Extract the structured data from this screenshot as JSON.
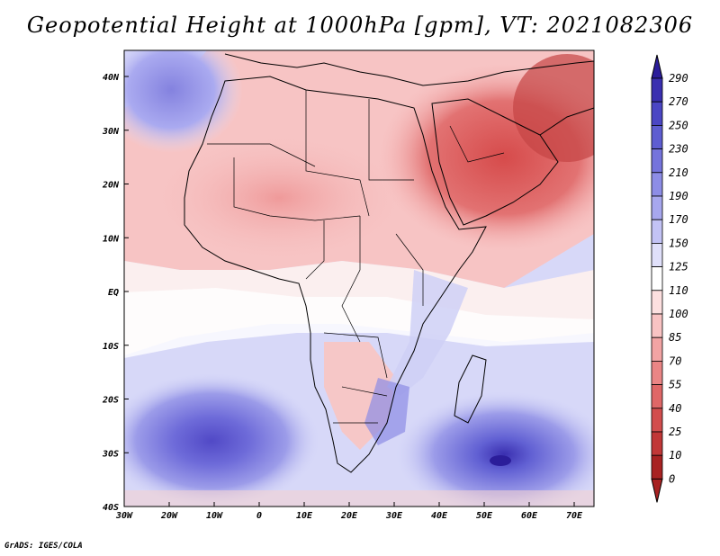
{
  "title": "Geopotential Height at 1000hPa [gpm], VT: 2021082306",
  "credit": "GrADS: IGES/COLA",
  "lat_ticks": [
    "40N",
    "30N",
    "20N",
    "10N",
    "EQ",
    "10S",
    "20S",
    "30S",
    "40S"
  ],
  "lon_ticks": [
    "30W",
    "20W",
    "10W",
    "0",
    "10E",
    "20E",
    "30E",
    "40E",
    "50E",
    "60E",
    "70E"
  ],
  "colorbar": {
    "labels": [
      "290",
      "270",
      "250",
      "230",
      "210",
      "190",
      "170",
      "150",
      "125",
      "110",
      "100",
      "85",
      "70",
      "55",
      "40",
      "25",
      "10",
      "0"
    ],
    "colors": [
      "#2b1d9a",
      "#3a2fb0",
      "#4b46c4",
      "#5e5dd1",
      "#7574dc",
      "#8d8de6",
      "#a7a7ee",
      "#c3c3f5",
      "#e0e0fa",
      "#ffffff",
      "#fde0e0",
      "#f9c3c3",
      "#f2a4a4",
      "#ea8585",
      "#df6767",
      "#d24d4d",
      "#c13737",
      "#a82222"
    ]
  },
  "map_features": [
    "land-outline",
    "country-borders",
    "height-anomaly-fill"
  ]
}
